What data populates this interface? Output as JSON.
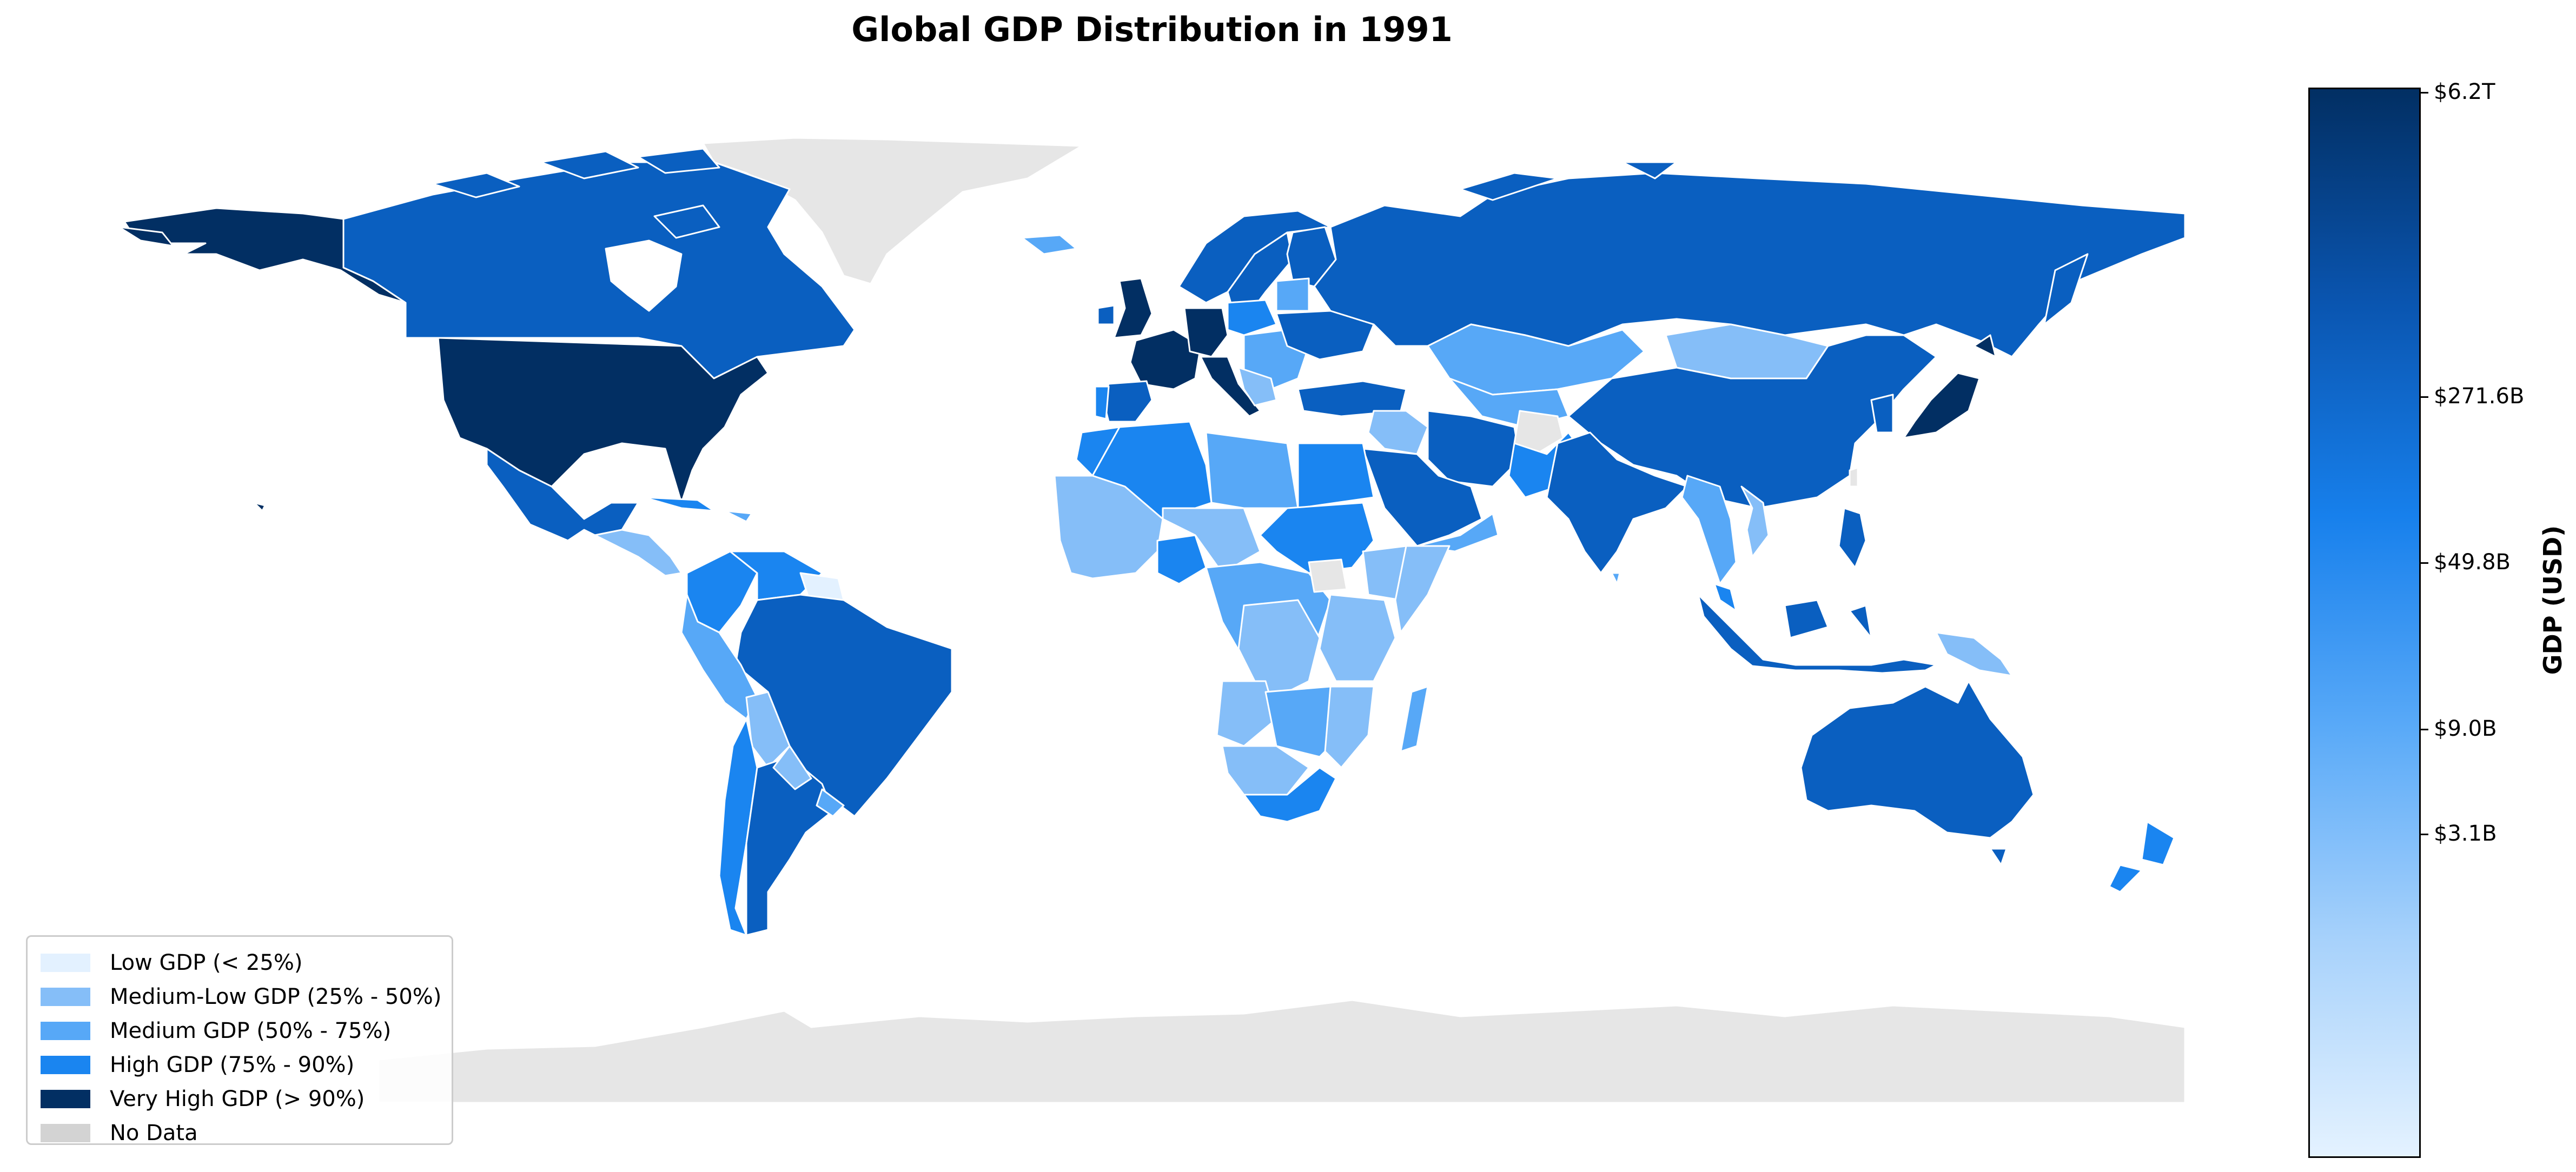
{
  "title": "Global GDP Distribution in 1991",
  "colorbar": {
    "label": "GDP (USD)",
    "ticks": [
      {
        "label": "$6.2T",
        "value": 6200000000000
      },
      {
        "label": "$271.6B",
        "value": 271600000000
      },
      {
        "label": "$49.8B",
        "value": 49800000000
      },
      {
        "label": "$9.0B",
        "value": 9000000000
      },
      {
        "label": "$3.1B",
        "value": 3100000000
      }
    ],
    "scale": "log",
    "gradient_colors": [
      "#022f63",
      "#0a55b0",
      "#1780ec",
      "#5aaaf8",
      "#a8d2fb",
      "#e4f2ff"
    ]
  },
  "legend": {
    "items": [
      {
        "label": "Low GDP (< 25%)",
        "color": "#e3f1ff"
      },
      {
        "label": "Medium-Low GDP (25% - 50%)",
        "color": "#85bef8"
      },
      {
        "label": "Medium GDP (50% - 75%)",
        "color": "#57a8f7"
      },
      {
        "label": "High GDP (75% - 90%)",
        "color": "#1a85f0"
      },
      {
        "label": "Very High GDP (> 90%)",
        "color": "#022f63"
      },
      {
        "label": "No Data",
        "color": "#d3d3d3"
      }
    ]
  },
  "colors": {
    "very_high": "#022f63",
    "high_dark": "#0a5fc0",
    "high": "#1a85f0",
    "medium": "#57a8f7",
    "medium_low": "#85bef8",
    "low": "#e3f1ff",
    "no_data": "#e6e6e6"
  }
}
